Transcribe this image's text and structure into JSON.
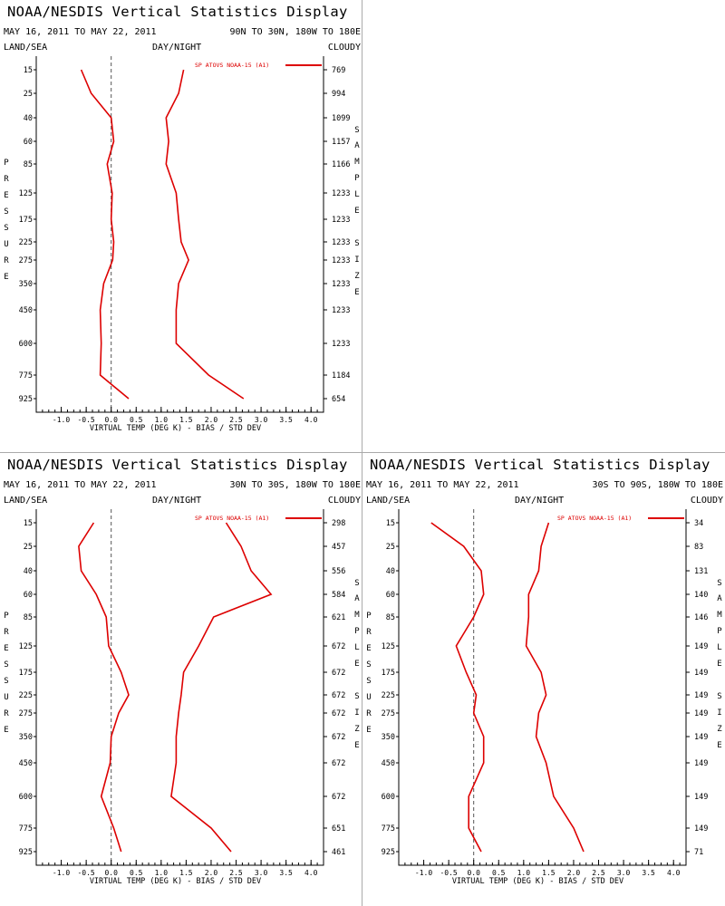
{
  "colors": {
    "series": "#dd0000",
    "axis": "#000000",
    "zero_line": "#555555",
    "background": "#ffffff",
    "divider": "#aaaaaa"
  },
  "panels": [
    {
      "title": "NOAA/NESDIS Vertical Statistics Display",
      "dates": "MAY 16, 2011 TO MAY 22, 2011",
      "region": "90N TO 30N, 180W TO 180E",
      "top_left": "LAND/SEA",
      "top_center": "DAY/NIGHT",
      "top_right": "CLOUDY",
      "left_label": [
        "P",
        "R",
        "E",
        "S",
        "S",
        "U",
        "R",
        "E"
      ],
      "right_label": [
        "S",
        "A",
        "M",
        "P",
        "L",
        "E",
        "",
        "S",
        "I",
        "Z",
        "E"
      ]
    },
    {
      "title": "NOAA/NESDIS Vertical Statistics Display",
      "dates": "MAY 16, 2011 TO MAY 22, 2011",
      "region": "30N TO 30S, 180W TO 180E",
      "top_left": "LAND/SEA",
      "top_center": "DAY/NIGHT",
      "top_right": "CLOUDY",
      "left_label": [
        "P",
        "R",
        "E",
        "S",
        "S",
        "U",
        "R",
        "E"
      ],
      "right_label": [
        "S",
        "A",
        "M",
        "P",
        "L",
        "E",
        "",
        "S",
        "I",
        "Z",
        "E"
      ]
    },
    {
      "title": "NOAA/NESDIS Vertical Statistics Display",
      "dates": "MAY 16, 2011 TO MAY 22, 2011",
      "region": "30S TO 90S, 180W TO 180E",
      "top_left": "LAND/SEA",
      "top_center": "DAY/NIGHT",
      "top_right": "CLOUDY",
      "left_label": [
        "P",
        "R",
        "E",
        "S",
        "S",
        "U",
        "R",
        "E"
      ],
      "right_label": [
        "S",
        "A",
        "M",
        "P",
        "L",
        "E",
        "",
        "S",
        "I",
        "Z",
        "E"
      ]
    }
  ],
  "chart_data": [
    {
      "type": "line",
      "xlabel": "VIRTUAL TEMP (DEG K) - BIAS / STD DEV",
      "xlim": [
        -1.5,
        4.25
      ],
      "x_ticks": [
        "-1.0",
        "-0.5",
        "0.0",
        "0.5",
        "1.0",
        "1.5",
        "2.0",
        "2.5",
        "3.0",
        "3.5",
        "4.0"
      ],
      "x_tick_values": [
        -1.0,
        -0.5,
        0.0,
        0.5,
        1.0,
        1.5,
        2.0,
        2.5,
        3.0,
        3.5,
        4.0
      ],
      "pressure_levels": [
        "15",
        "25",
        "40",
        "60",
        "85",
        "125",
        "175",
        "225",
        "275",
        "350",
        "450",
        "600",
        "775",
        "925"
      ],
      "sample_size": [
        "769",
        "994",
        "1099",
        "1157",
        "1166",
        "1233",
        "1233",
        "1233",
        "1233",
        "1233",
        "1233",
        "1233",
        "1184",
        "654"
      ],
      "legend": "SP ATOVS NOAA-15 (A1)",
      "series": [
        {
          "name": "BIAS",
          "values": [
            -0.6,
            -0.4,
            0.0,
            0.05,
            -0.08,
            0.02,
            0.0,
            0.05,
            0.03,
            -0.15,
            -0.22,
            -0.2,
            -0.22,
            0.35
          ]
        },
        {
          "name": "STD DEV",
          "values": [
            1.45,
            1.35,
            1.1,
            1.15,
            1.1,
            1.3,
            1.35,
            1.4,
            1.55,
            1.35,
            1.3,
            1.3,
            1.95,
            2.65
          ]
        }
      ]
    },
    {
      "type": "line",
      "xlabel": "VIRTUAL TEMP (DEG K) - BIAS / STD DEV",
      "xlim": [
        -1.5,
        4.25
      ],
      "x_ticks": [
        "-1.0",
        "-0.5",
        "0.0",
        "0.5",
        "1.0",
        "1.5",
        "2.0",
        "2.5",
        "3.0",
        "3.5",
        "4.0"
      ],
      "x_tick_values": [
        -1.0,
        -0.5,
        0.0,
        0.5,
        1.0,
        1.5,
        2.0,
        2.5,
        3.0,
        3.5,
        4.0
      ],
      "pressure_levels": [
        "15",
        "25",
        "40",
        "60",
        "85",
        "125",
        "175",
        "225",
        "275",
        "350",
        "450",
        "600",
        "775",
        "925"
      ],
      "sample_size": [
        "298",
        "457",
        "556",
        "584",
        "621",
        "672",
        "672",
        "672",
        "672",
        "672",
        "672",
        "672",
        "651",
        "461"
      ],
      "legend": "SP ATOVS NOAA-15 (A1)",
      "series": [
        {
          "name": "BIAS",
          "values": [
            -0.35,
            -0.65,
            -0.6,
            -0.3,
            -0.1,
            -0.05,
            0.2,
            0.35,
            0.15,
            0.0,
            -0.02,
            -0.2,
            0.05,
            0.2
          ]
        },
        {
          "name": "STD DEV",
          "values": [
            2.3,
            2.6,
            2.8,
            3.2,
            2.05,
            1.75,
            1.45,
            1.4,
            1.35,
            1.3,
            1.3,
            1.2,
            2.0,
            2.4
          ]
        }
      ]
    },
    {
      "type": "line",
      "xlabel": "VIRTUAL TEMP (DEG K) - BIAS / STD DEV",
      "xlim": [
        -1.5,
        4.25
      ],
      "x_ticks": [
        "-1.0",
        "-0.5",
        "0.0",
        "0.5",
        "1.0",
        "1.5",
        "2.0",
        "2.5",
        "3.0",
        "3.5",
        "4.0"
      ],
      "x_tick_values": [
        -1.0,
        -0.5,
        0.0,
        0.5,
        1.0,
        1.5,
        2.0,
        2.5,
        3.0,
        3.5,
        4.0
      ],
      "pressure_levels": [
        "15",
        "25",
        "40",
        "60",
        "85",
        "125",
        "175",
        "225",
        "275",
        "350",
        "450",
        "600",
        "775",
        "925"
      ],
      "sample_size": [
        "34",
        "83",
        "131",
        "140",
        "146",
        "149",
        "149",
        "149",
        "149",
        "149",
        "149",
        "149",
        "149",
        "71"
      ],
      "legend": "SP ATOVS NOAA-15 (A1)",
      "series": [
        {
          "name": "BIAS",
          "values": [
            -0.85,
            -0.2,
            0.15,
            0.2,
            0.0,
            -0.35,
            -0.15,
            0.05,
            0.0,
            0.2,
            0.2,
            -0.1,
            -0.1,
            0.15
          ]
        },
        {
          "name": "STD DEV",
          "values": [
            1.5,
            1.35,
            1.3,
            1.1,
            1.1,
            1.05,
            1.35,
            1.45,
            1.3,
            1.25,
            1.45,
            1.6,
            2.0,
            2.2
          ]
        }
      ]
    }
  ]
}
